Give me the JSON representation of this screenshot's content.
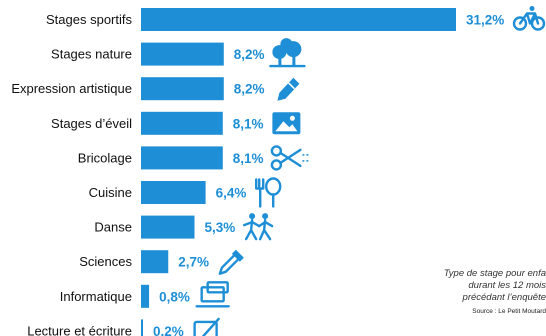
{
  "chart_data": {
    "type": "bar",
    "orientation": "horizontal",
    "categories": [
      "Stages sportifs",
      "Stages nature",
      "Expression artistique",
      "Stages d’éveil",
      "Bricolage",
      "Cuisine",
      "Danse",
      "Sciences",
      "Informatique",
      "Lecture et écriture"
    ],
    "values": [
      31.2,
      8.2,
      8.2,
      8.1,
      8.1,
      6.4,
      5.3,
      2.7,
      0.8,
      0.2
    ],
    "value_labels": [
      "31,2%",
      "8,2%",
      "8,2%",
      "8,1%",
      "8,1%",
      "6,4%",
      "5,3%",
      "2,7%",
      "0,8%",
      "0.2%"
    ],
    "icons": [
      "bicycle-icon",
      "tree-icon",
      "pencil-icon",
      "picture-icon",
      "scissors-icon",
      "cooking-utensils-icon",
      "dancers-icon",
      "pipette-icon",
      "laptop-icon",
      "writing-icon"
    ],
    "bar_color": "#1e8fd6",
    "value_color": "#1e8fd6",
    "note_lines": [
      "Type de stage pour enfa",
      "durant les 12 mois",
      "précédant l’enquête"
    ],
    "source": "Source : Le Petit Moutard",
    "grid": false,
    "legend": "none"
  }
}
